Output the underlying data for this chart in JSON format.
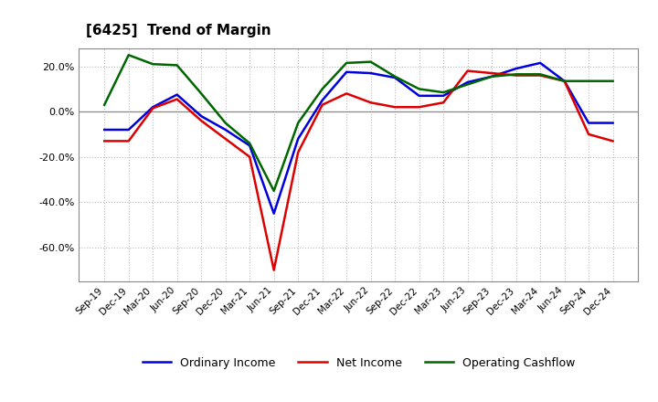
{
  "title": "[6425]  Trend of Margin",
  "x_labels": [
    "Sep-19",
    "Dec-19",
    "Mar-20",
    "Jun-20",
    "Sep-20",
    "Dec-20",
    "Mar-21",
    "Jun-21",
    "Sep-21",
    "Dec-21",
    "Mar-22",
    "Jun-22",
    "Sep-22",
    "Dec-22",
    "Mar-23",
    "Jun-23",
    "Sep-23",
    "Dec-23",
    "Mar-24",
    "Jun-24",
    "Sep-24",
    "Dec-24"
  ],
  "ordinary_income": [
    -8.0,
    -8.0,
    2.0,
    7.5,
    -2.0,
    -8.0,
    -15.0,
    -45.0,
    -12.0,
    5.0,
    17.5,
    17.0,
    15.0,
    7.0,
    7.0,
    13.0,
    15.5,
    19.0,
    21.5,
    13.5,
    -5.0,
    -5.0
  ],
  "net_income": [
    -13.0,
    -13.0,
    1.5,
    5.5,
    -4.0,
    -12.0,
    -20.0,
    -70.0,
    -18.0,
    3.0,
    8.0,
    4.0,
    2.0,
    2.0,
    4.0,
    18.0,
    17.0,
    16.0,
    16.0,
    13.5,
    -10.0,
    -13.0
  ],
  "operating_cashflow": [
    3.0,
    25.0,
    21.0,
    20.5,
    8.0,
    -5.0,
    -14.0,
    -35.0,
    -5.0,
    10.0,
    21.5,
    22.0,
    15.5,
    10.0,
    8.5,
    12.0,
    15.5,
    16.5,
    16.5,
    13.5,
    13.5,
    13.5
  ],
  "colors": {
    "ordinary_income": "#0000dd",
    "net_income": "#dd0000",
    "operating_cashflow": "#006600"
  },
  "ylim": [
    -75,
    28
  ],
  "yticks": [
    -60.0,
    -40.0,
    -20.0,
    0.0,
    20.0
  ],
  "background_color": "#ffffff",
  "grid_color": "#bbbbbb",
  "line_width": 1.8,
  "legend_labels": [
    "Ordinary Income",
    "Net Income",
    "Operating Cashflow"
  ]
}
